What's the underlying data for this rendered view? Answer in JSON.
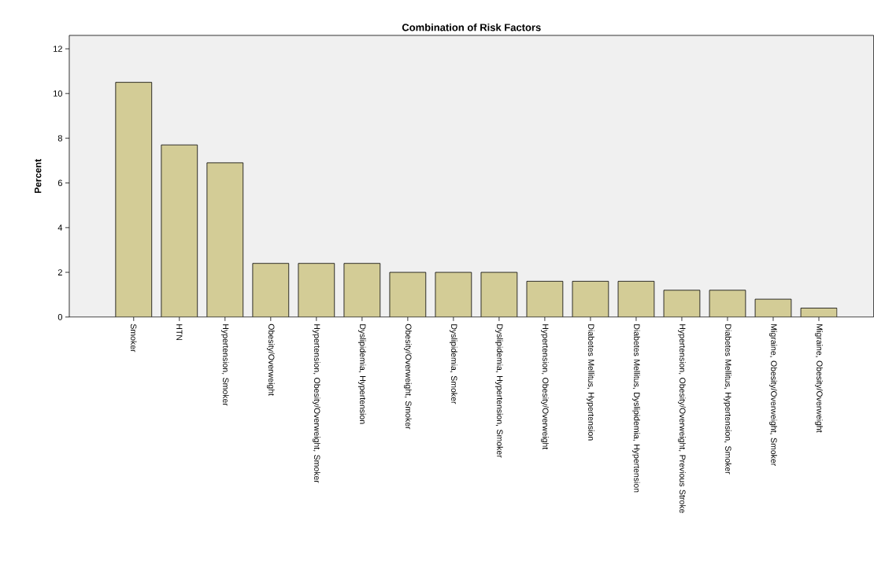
{
  "chart_data": {
    "type": "bar",
    "title": "Combination of Risk Factors",
    "ylabel": "Percent",
    "categories": [
      "Smoker",
      "HTN",
      "Hypertension, Smoker",
      "Obesity/Overweight",
      "Hypertension, Obesity/Overweight, Smoker",
      "Dyslipidemia, Hypertension",
      "Obesity/Overweight, Smoker",
      "Dyslipidemia, Smoker",
      "Dyslipidemia, Hypertension, Smoker",
      "Hypertension, Obesity/Overweight",
      "Diabetes Mellitus, Hypertension",
      "Diabetes Mellitus, Dyslipidemia, Hypertension",
      "Hypertension, Obesity/Overweight, Previous Stroke",
      "Diabetes Mellitus, Hypertension, Smoker",
      "Migraine, Obesity/Overweight, Smoker",
      "Migraine, Obesity/Overweight"
    ],
    "values": [
      10.5,
      7.7,
      6.9,
      2.4,
      2.4,
      2.4,
      2.0,
      2.0,
      2.0,
      1.6,
      1.6,
      1.6,
      1.2,
      1.2,
      0.8,
      0.4
    ],
    "color": "#d3cc96",
    "ylim": [
      0,
      12.6
    ],
    "yticks": [
      0,
      2,
      4,
      6,
      8,
      10,
      12
    ],
    "grid": false
  }
}
